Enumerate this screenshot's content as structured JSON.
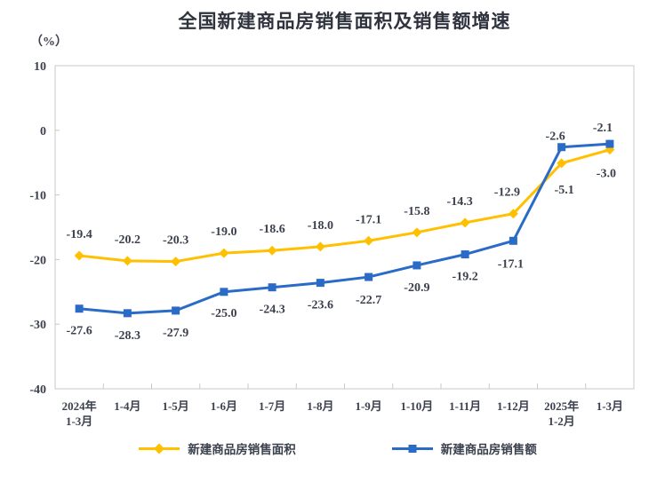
{
  "title": "全国新建商品房销售面积及销售额增速",
  "y_axis_unit": "（%）",
  "colors": {
    "series_area": "#FFC000",
    "series_amount": "#2A6BC7",
    "axis_line": "#C8C8C8",
    "text": "#3C414E"
  },
  "chart_data": {
    "type": "line",
    "title": "全国新建商品房销售面积及销售额增速",
    "ylabel": "（%）",
    "xlabel": "",
    "ylim": [
      -40,
      10
    ],
    "y_ticks": [
      10,
      0,
      -10,
      -20,
      -30,
      -40
    ],
    "grid": false,
    "legend_position": "bottom",
    "categories": [
      [
        "2024年",
        "1-3月"
      ],
      [
        "1-4月"
      ],
      [
        "1-5月"
      ],
      [
        "1-6月"
      ],
      [
        "1-7月"
      ],
      [
        "1-8月"
      ],
      [
        "1-9月"
      ],
      [
        "1-10月"
      ],
      [
        "1-11月"
      ],
      [
        "1-12月"
      ],
      [
        "2025年",
        "1-2月"
      ],
      [
        "1-3月"
      ]
    ],
    "series": [
      {
        "name": "新建商品房销售面积",
        "marker": "diamond",
        "color": "#FFC000",
        "values": [
          -19.4,
          -20.2,
          -20.3,
          -19.0,
          -18.6,
          -18.0,
          -17.1,
          -15.8,
          -14.3,
          -12.9,
          -5.1,
          -3.0
        ],
        "labels": [
          "-19.4",
          "-20.2",
          "-20.3",
          "-19.0",
          "-18.6",
          "-18.0",
          "-17.1",
          "-15.8",
          "-14.3",
          "-12.9",
          "-5.1",
          "-3.0"
        ],
        "label_dy": [
          -20,
          -20,
          -20,
          -20,
          -20,
          -20,
          -20,
          -20,
          -20,
          -20,
          34,
          31
        ],
        "label_dx": [
          0,
          0,
          0,
          0,
          0,
          0,
          0,
          0,
          -6,
          -7,
          3,
          -4
        ]
      },
      {
        "name": "新建商品房销售额",
        "marker": "square",
        "color": "#2A6BC7",
        "values": [
          -27.6,
          -28.3,
          -27.9,
          -25.0,
          -24.3,
          -23.6,
          -22.7,
          -20.9,
          -19.2,
          -17.1,
          -2.6,
          -2.1
        ],
        "labels": [
          "-27.6",
          "-28.3",
          "-27.9",
          "-25.0",
          "-24.3",
          "-23.6",
          "-22.7",
          "-20.9",
          "-19.2",
          "-17.1",
          "-2.6",
          "-2.1"
        ],
        "label_dy": [
          29,
          29,
          29,
          28,
          29,
          29,
          30,
          29,
          29,
          30,
          -8,
          -14
        ],
        "label_dx": [
          0,
          0,
          0,
          0,
          0,
          0,
          0,
          0,
          0,
          -3,
          -7,
          -8
        ]
      }
    ]
  }
}
